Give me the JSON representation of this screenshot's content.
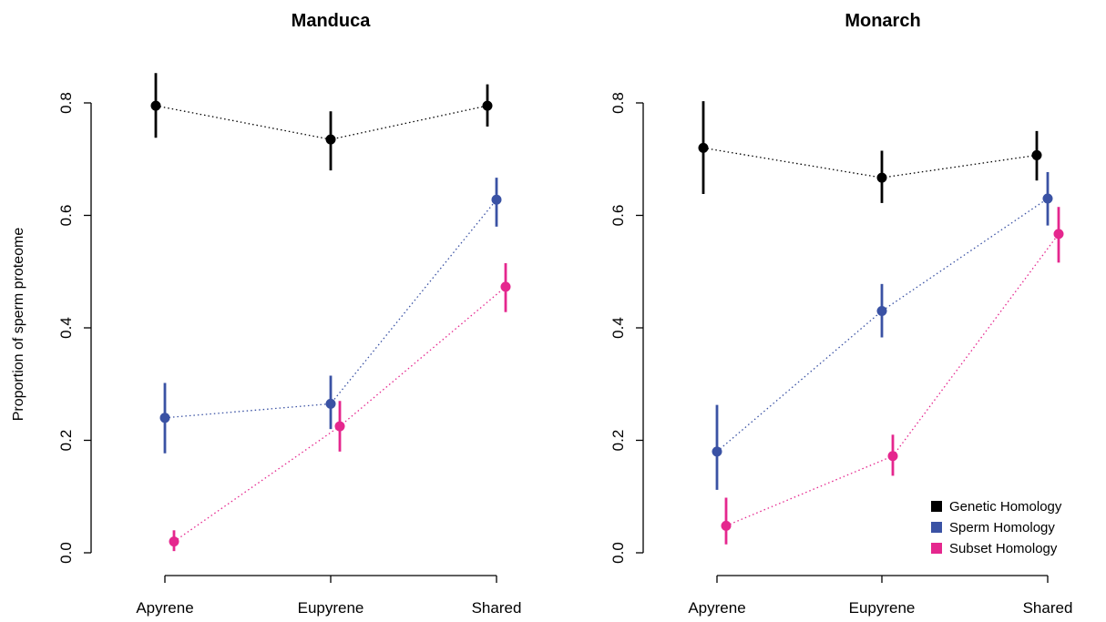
{
  "ylabel": "Proportion of sperm proteome",
  "chart_data": [
    {
      "type": "scatter",
      "title": "Manduca",
      "categories": [
        "Apyrene",
        "Eupyrene",
        "Shared"
      ],
      "ylim": [
        0,
        0.8
      ],
      "yticks": [
        "0.0",
        "0.2",
        "0.4",
        "0.6",
        "0.8"
      ],
      "series": [
        {
          "name": "Genetic Homology",
          "color": "#000000",
          "values": [
            0.795,
            0.735,
            0.795
          ],
          "lower": [
            0.738,
            0.68,
            0.758
          ],
          "upper": [
            0.853,
            0.785,
            0.833
          ]
        },
        {
          "name": "Sperm Homology",
          "color": "#3a52a4",
          "values": [
            0.24,
            0.265,
            0.628
          ],
          "lower": [
            0.177,
            0.22,
            0.58
          ],
          "upper": [
            0.302,
            0.315,
            0.667
          ]
        },
        {
          "name": "Subset Homology",
          "color": "#e5278e",
          "values": [
            0.02,
            0.225,
            0.473
          ],
          "lower": [
            0.003,
            0.18,
            0.428
          ],
          "upper": [
            0.04,
            0.27,
            0.515
          ]
        }
      ]
    },
    {
      "type": "scatter",
      "title": "Monarch",
      "categories": [
        "Apyrene",
        "Eupyrene",
        "Shared"
      ],
      "ylim": [
        0,
        0.8
      ],
      "yticks": [
        "0.0",
        "0.2",
        "0.4",
        "0.6",
        "0.8"
      ],
      "legend_position": "bottom-right",
      "series": [
        {
          "name": "Genetic Homology",
          "color": "#000000",
          "values": [
            0.72,
            0.667,
            0.707
          ],
          "lower": [
            0.638,
            0.622,
            0.662
          ],
          "upper": [
            0.803,
            0.715,
            0.75
          ]
        },
        {
          "name": "Sperm Homology",
          "color": "#3a52a4",
          "values": [
            0.18,
            0.43,
            0.63
          ],
          "lower": [
            0.112,
            0.383,
            0.582
          ],
          "upper": [
            0.263,
            0.478,
            0.677
          ]
        },
        {
          "name": "Subset Homology",
          "color": "#e5278e",
          "values": [
            0.048,
            0.172,
            0.567
          ],
          "lower": [
            0.015,
            0.137,
            0.516
          ],
          "upper": [
            0.098,
            0.21,
            0.615
          ]
        }
      ]
    }
  ]
}
